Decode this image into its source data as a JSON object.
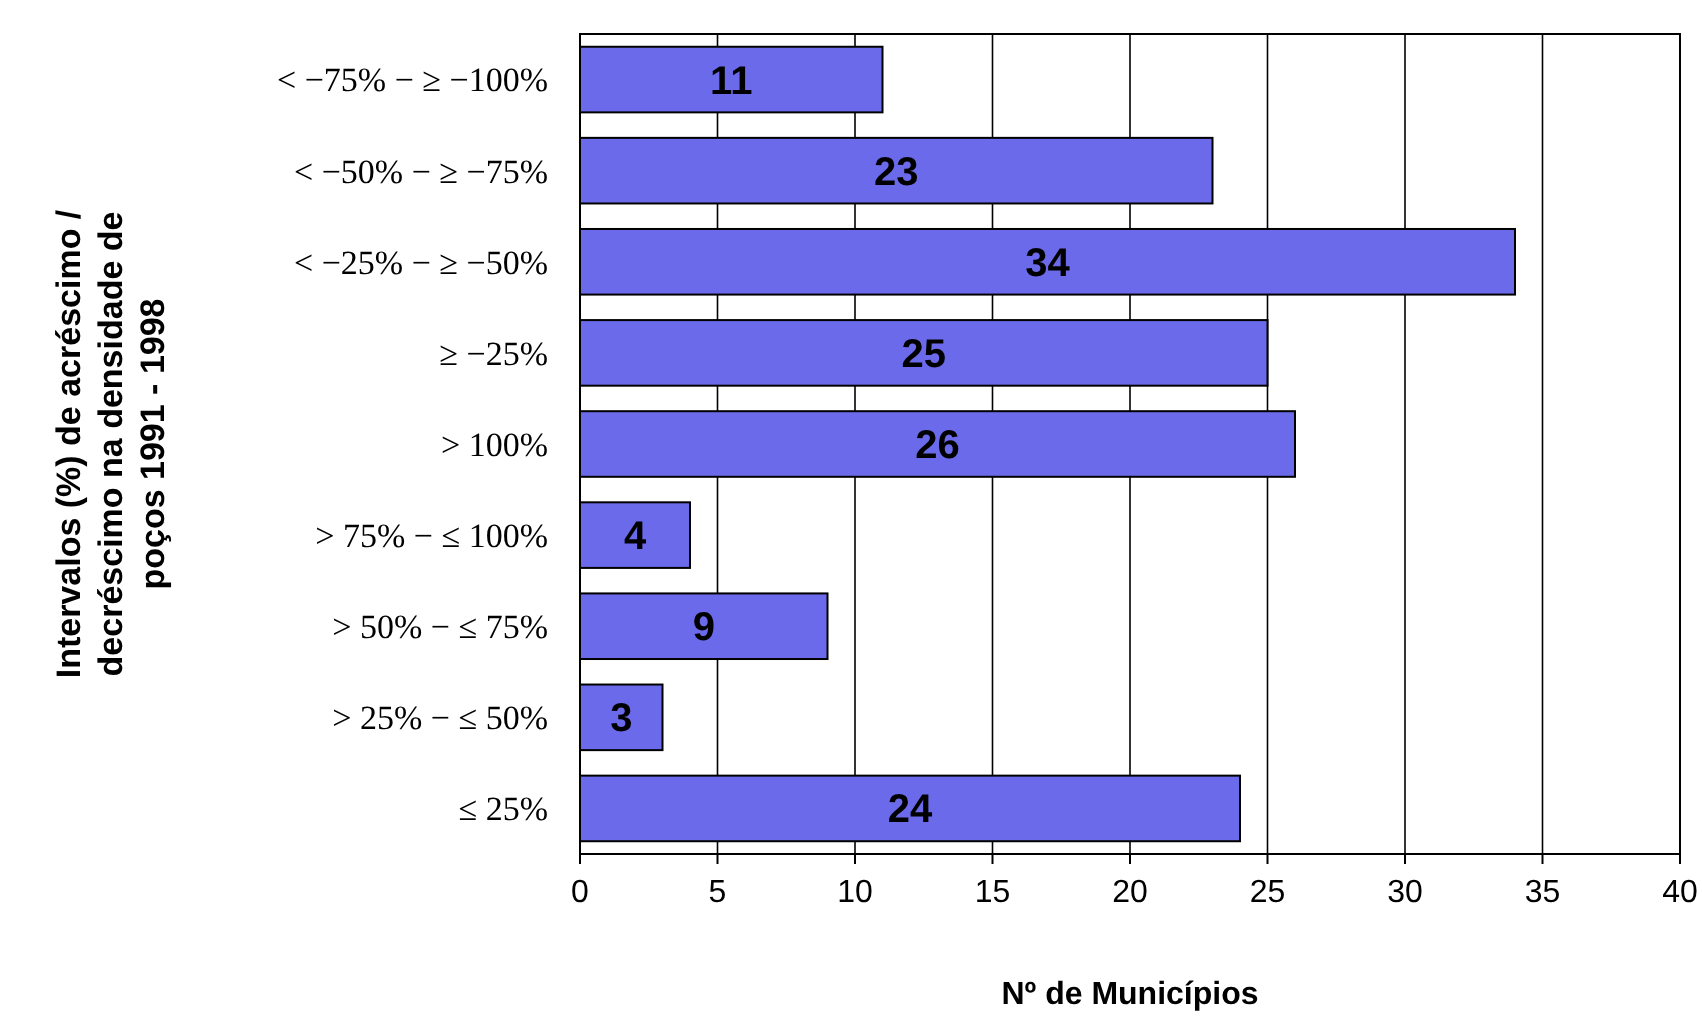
{
  "chart_data": {
    "type": "bar",
    "orientation": "horizontal",
    "ylabel": "Intervalos (%) de acréscimo /\ndecréscimo na densidade de\npoços 1991 - 1998",
    "xlabel": "Nº de Municípios",
    "categories": [
      "< −75% − ≥ −100%",
      "< −50% − ≥ −75%",
      "< −25% − ≥ −50%",
      "≥ −25%",
      "> 100%",
      "> 75% − ≤ 100%",
      "> 50% − ≤ 75%",
      "> 25% − ≤ 50%",
      "≤ 25%"
    ],
    "values": [
      11,
      23,
      34,
      25,
      26,
      4,
      9,
      3,
      24
    ],
    "color": "#6a6aea",
    "xlim": [
      0,
      40
    ],
    "xticks": [
      0,
      5,
      10,
      15,
      20,
      25,
      30,
      35,
      40
    ],
    "grid": "x",
    "data_labels": true
  }
}
